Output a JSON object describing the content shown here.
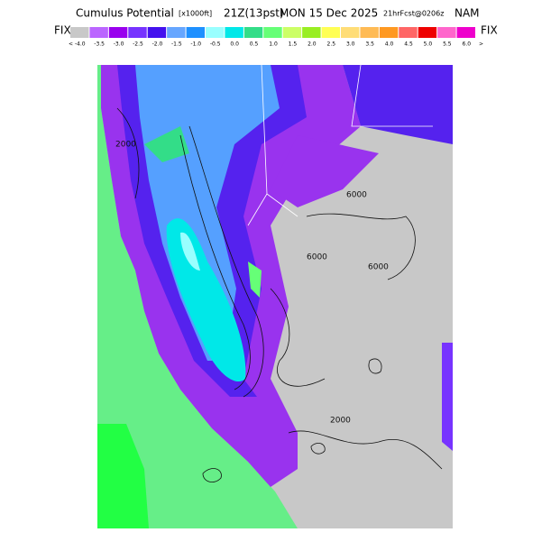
{
  "header": {
    "title": "Cumulus Potential",
    "units": "[x1000ft]",
    "time": "21Z(13pst)",
    "date": "MON 15 Dec 2025",
    "forecast": "21hrFcst@0206z",
    "model": "NAM"
  },
  "legend": {
    "left_label": "FIX",
    "right_label": "FIX",
    "less_marker": "<",
    "more_marker": ">",
    "items": [
      {
        "label": "-4.0",
        "color": "#c8c8c8"
      },
      {
        "label": "-3.5",
        "color": "#bb66ff"
      },
      {
        "label": "-3.0",
        "color": "#9900ee"
      },
      {
        "label": "-2.5",
        "color": "#7733ff"
      },
      {
        "label": "-2.0",
        "color": "#4411ee"
      },
      {
        "label": "-1.5",
        "color": "#66a6ff"
      },
      {
        "label": "-1.0",
        "color": "#1e90ff"
      },
      {
        "label": "-0.5",
        "color": "#99ffff"
      },
      {
        "label": "0.0",
        "color": "#00e8e8"
      },
      {
        "label": "0.5",
        "color": "#33dd88"
      },
      {
        "label": "1.0",
        "color": "#66ff77"
      },
      {
        "label": "1.5",
        "color": "#ccff66"
      },
      {
        "label": "2.0",
        "color": "#99ee22"
      },
      {
        "label": "2.5",
        "color": "#ffff55"
      },
      {
        "label": "3.0",
        "color": "#ffdd77"
      },
      {
        "label": "3.5",
        "color": "#ffbb55"
      },
      {
        "label": "4.0",
        "color": "#ff9922"
      },
      {
        "label": "4.5",
        "color": "#ff6666"
      },
      {
        "label": "5.0",
        "color": "#ee0000"
      },
      {
        "label": "5.5",
        "color": "#ff66cc"
      },
      {
        "label": "6.0",
        "color": "#ee00cc"
      }
    ]
  },
  "map": {
    "contour_labels": [
      "6000",
      "6000",
      "6000",
      "2000",
      "2000"
    ]
  }
}
